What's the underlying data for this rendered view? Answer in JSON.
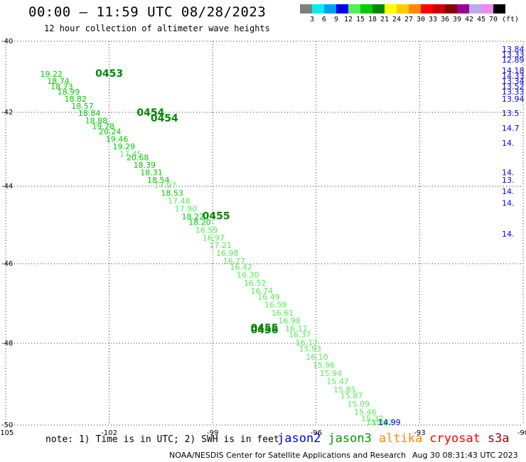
{
  "header": {
    "title": "00:00 – 11:59 UTC 08/28/2023",
    "subtitle": "12 hour collection of altimeter wave heights"
  },
  "color_scale": {
    "unit": "(ft)",
    "bins": [
      {
        "label": "3",
        "color": "#808080"
      },
      {
        "label": "6",
        "color": "#00eeee"
      },
      {
        "label": "9",
        "color": "#00a0ee"
      },
      {
        "label": "12",
        "color": "#0000ee"
      },
      {
        "label": "15",
        "color": "#55ee55"
      },
      {
        "label": "18",
        "color": "#00cc00"
      },
      {
        "label": "21",
        "color": "#008800"
      },
      {
        "label": "24",
        "color": "#ffff00"
      },
      {
        "label": "27",
        "color": "#ffcc00"
      },
      {
        "label": "30",
        "color": "#ff8800"
      },
      {
        "label": "33",
        "color": "#ff0000"
      },
      {
        "label": "36",
        "color": "#cc0000"
      },
      {
        "label": "39",
        "color": "#880000"
      },
      {
        "label": "42",
        "color": "#990099"
      },
      {
        "label": "45",
        "color": "#bbaaee"
      },
      {
        "label": "70",
        "color": "#ee88ee"
      },
      {
        "label": "",
        "color": "#000000"
      }
    ]
  },
  "map": {
    "lon_ticks": [
      "-105",
      "-102",
      "-99",
      "-96",
      "-93",
      "-90"
    ],
    "lat_ticks": [
      "-40",
      "-42",
      "-44",
      "-46",
      "-48",
      "-50"
    ],
    "lon_range": [
      -105,
      -90
    ],
    "lat_range": [
      -40,
      -50
    ],
    "grid": "dotted"
  },
  "track": {
    "satellite": "jason3",
    "time_labels": [
      {
        "text": "0453",
        "lon": -102.4,
        "lat": -41.0
      },
      {
        "text": "0454",
        "lon": -101.2,
        "lat": -42.1
      },
      {
        "text": "0454",
        "lon": -100.8,
        "lat": -42.25
      },
      {
        "text": "0455",
        "lon": -99.3,
        "lat": -44.85
      },
      {
        "text": "0455",
        "lon": -97.9,
        "lat": -47.7
      },
      {
        "text": "0456",
        "lon": -97.9,
        "lat": -47.75
      }
    ],
    "swh": [
      {
        "v": "19.22",
        "lon": -104.0,
        "lat": -41.0
      },
      {
        "v": "18.74",
        "lon": -103.8,
        "lat": -41.2
      },
      {
        "v": "18.73",
        "lon": -103.7,
        "lat": -41.35
      },
      {
        "v": "18.99",
        "lon": -103.5,
        "lat": -41.5
      },
      {
        "v": "18.82",
        "lon": -103.3,
        "lat": -41.7
      },
      {
        "v": "18.57",
        "lon": -103.1,
        "lat": -41.9
      },
      {
        "v": "18.84",
        "lon": -102.9,
        "lat": -42.1
      },
      {
        "v": "18.88",
        "lon": -102.7,
        "lat": -42.3
      },
      {
        "v": "19.78",
        "lon": -102.5,
        "lat": -42.45
      },
      {
        "v": "20.24",
        "lon": -102.3,
        "lat": -42.6
      },
      {
        "v": "19.46",
        "lon": -102.1,
        "lat": -42.8
      },
      {
        "v": "19.29",
        "lon": -101.9,
        "lat": -43.0
      },
      {
        "v": "17.45",
        "lon": -101.7,
        "lat": -43.2
      },
      {
        "v": "20.68",
        "lon": -101.5,
        "lat": -43.3
      },
      {
        "v": "18.39",
        "lon": -101.3,
        "lat": -43.5
      },
      {
        "v": "18.31",
        "lon": -101.1,
        "lat": -43.7
      },
      {
        "v": "18.54",
        "lon": -100.9,
        "lat": -43.9
      },
      {
        "v": "17.97",
        "lon": -100.7,
        "lat": -44.05
      },
      {
        "v": "18.53",
        "lon": -100.5,
        "lat": -44.25
      },
      {
        "v": "17.48",
        "lon": -100.3,
        "lat": -44.45
      },
      {
        "v": "17.90",
        "lon": -100.1,
        "lat": -44.65
      },
      {
        "v": "18.22",
        "lon": -99.9,
        "lat": -44.85
      },
      {
        "v": "18.20",
        "lon": -99.7,
        "lat": -45.0
      },
      {
        "v": "16.59",
        "lon": -99.5,
        "lat": -45.2
      },
      {
        "v": "16.97",
        "lon": -99.3,
        "lat": -45.4
      },
      {
        "v": "17.21",
        "lon": -99.1,
        "lat": -45.6
      },
      {
        "v": "16.98",
        "lon": -98.9,
        "lat": -45.8
      },
      {
        "v": "16.27",
        "lon": -98.7,
        "lat": -46.0
      },
      {
        "v": "16.42",
        "lon": -98.5,
        "lat": -46.15
      },
      {
        "v": "16.30",
        "lon": -98.3,
        "lat": -46.35
      },
      {
        "v": "16.52",
        "lon": -98.1,
        "lat": -46.55
      },
      {
        "v": "16.74",
        "lon": -97.9,
        "lat": -46.75
      },
      {
        "v": "16.49",
        "lon": -97.7,
        "lat": -46.9
      },
      {
        "v": "16.59",
        "lon": -97.5,
        "lat": -47.1
      },
      {
        "v": "16.61",
        "lon": -97.3,
        "lat": -47.3
      },
      {
        "v": "16.98",
        "lon": -97.1,
        "lat": -47.5
      },
      {
        "v": "16.11",
        "lon": -96.9,
        "lat": -47.7
      },
      {
        "v": "16.37",
        "lon": -96.8,
        "lat": -47.85
      },
      {
        "v": "16.17",
        "lon": -96.6,
        "lat": -48.05
      },
      {
        "v": "15.93",
        "lon": -96.5,
        "lat": -48.2
      },
      {
        "v": "16.10",
        "lon": -96.3,
        "lat": -48.4
      },
      {
        "v": "15.96",
        "lon": -96.1,
        "lat": -48.6
      },
      {
        "v": "15.94",
        "lon": -95.9,
        "lat": -48.8
      },
      {
        "v": "15.47",
        "lon": -95.7,
        "lat": -49.0
      },
      {
        "v": "15.85",
        "lon": -95.5,
        "lat": -49.2
      },
      {
        "v": "15.87",
        "lon": -95.3,
        "lat": -49.35
      },
      {
        "v": "15.09",
        "lon": -95.1,
        "lat": -49.55
      },
      {
        "v": "15.46",
        "lon": -94.9,
        "lat": -49.75
      },
      {
        "v": "15.32",
        "lon": -94.7,
        "lat": -49.9
      },
      {
        "v": "15.06",
        "lon": -94.55,
        "lat": -50.05
      },
      {
        "v": "15.22",
        "lon": -94.4,
        "lat": -50.25
      },
      {
        "v": "14.99",
        "lon": -94.2,
        "lat": -50.4
      }
    ],
    "edge_values": [
      {
        "v": "13.84",
        "lon": -90.0,
        "lat": -40.3
      },
      {
        "v": "13.33",
        "lon": -90.0,
        "lat": -40.45
      },
      {
        "v": "12.89",
        "lon": -90.0,
        "lat": -40.6
      },
      {
        "v": "14.18",
        "lon": -90.0,
        "lat": -40.9
      },
      {
        "v": "14.33",
        "lon": -90.0,
        "lat": -41.05
      },
      {
        "v": "13.34",
        "lon": -90.0,
        "lat": -41.2
      },
      {
        "v": "13.52",
        "lon": -90.0,
        "lat": -41.35
      },
      {
        "v": "13.33",
        "lon": -90.0,
        "lat": -41.5
      },
      {
        "v": "13.94",
        "lon": -90.0,
        "lat": -41.7
      },
      {
        "v": "13.5",
        "lon": -89.9,
        "lat": -42.1
      },
      {
        "v": "14.7",
        "lon": -89.9,
        "lat": -42.5
      },
      {
        "v": "14.",
        "lon": -89.8,
        "lat": -42.9
      },
      {
        "v": "14.",
        "lon": -89.8,
        "lat": -43.7
      },
      {
        "v": "13.",
        "lon": -89.8,
        "lat": -43.9
      },
      {
        "v": "14.",
        "lon": -89.8,
        "lat": -44.2
      },
      {
        "v": "14.",
        "lon": -89.8,
        "lat": -44.5
      },
      {
        "v": "14.",
        "lon": -89.7,
        "lat": -45.3
      }
    ]
  },
  "note": "note: 1) Time is in UTC; 2) SWH is in feet",
  "satellites": [
    {
      "name": "jason2",
      "color": "#0000ff"
    },
    {
      "name": "jason3",
      "color": "#009900"
    },
    {
      "name": "altika",
      "color": "#ff8800"
    },
    {
      "name": "cryosat",
      "color": "#ff0000"
    },
    {
      "name": "s3a",
      "color": "#990000"
    }
  ],
  "credit": "NOAA/NESDIS Center for Satellite Applications and Research",
  "timestamp": "Aug 30 08:31:43 UTC 2023"
}
